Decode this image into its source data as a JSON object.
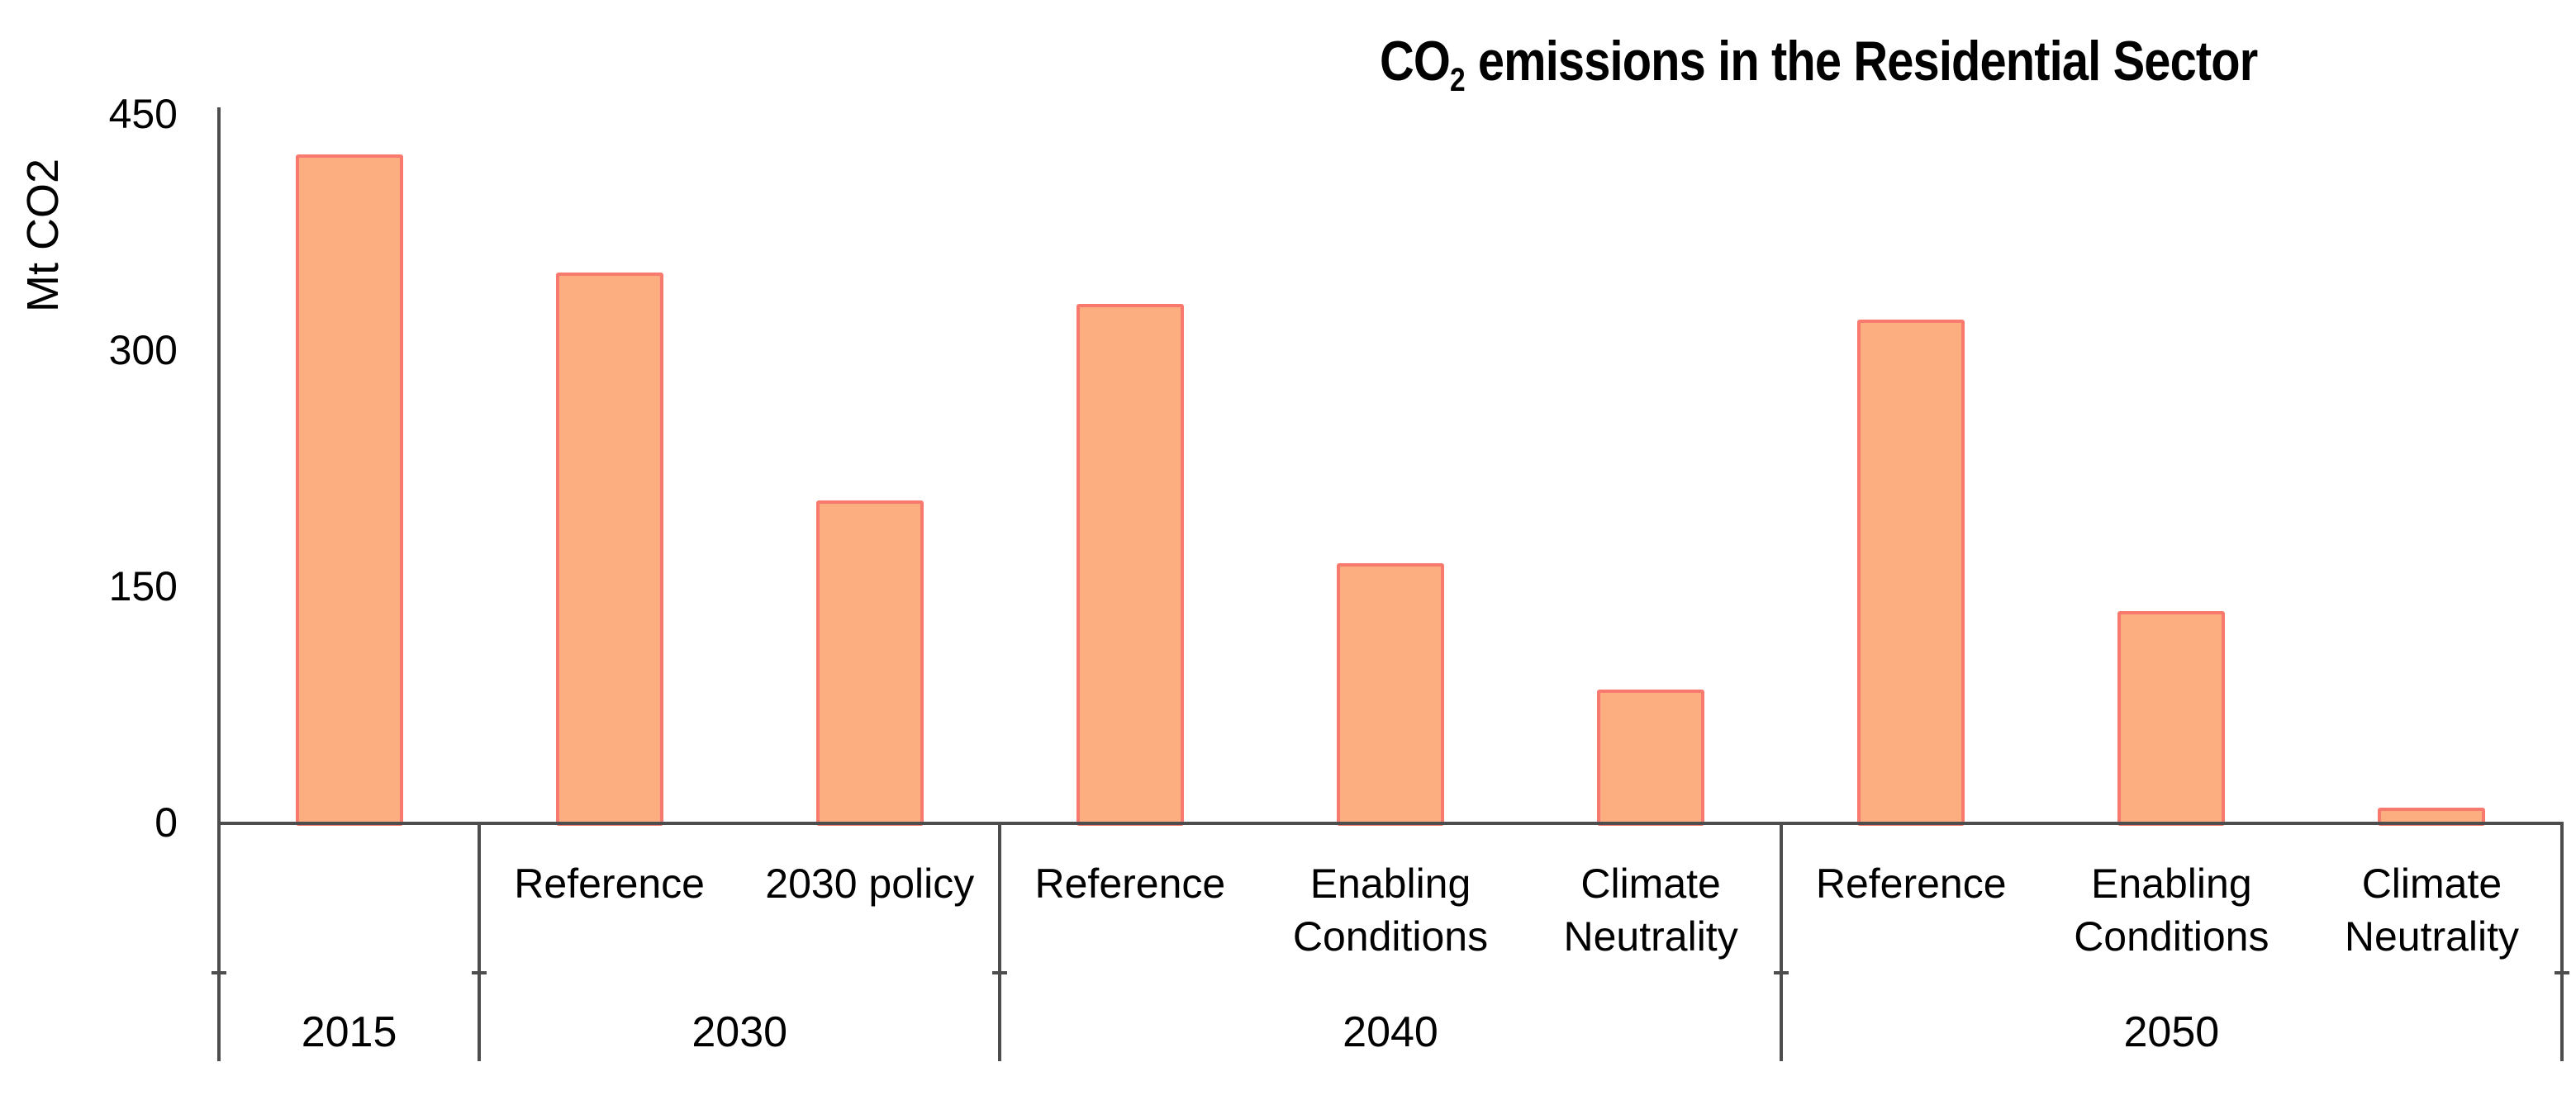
{
  "title": {
    "prefix": "CO",
    "subscript": "2",
    "rest": " emissions in the Residential Sector"
  },
  "colors": {
    "bar_fill": "#FCAE80",
    "bar_border": "#F8796E",
    "axis": "#4D4D4D",
    "text": "#000000",
    "background": "#FFFFFF"
  },
  "chart_data": {
    "type": "bar",
    "title": "CO2 emissions in the Residential Sector",
    "xlabel": "",
    "ylabel": "Mt CO2",
    "ylim": [
      0,
      450
    ],
    "yticks": [
      450,
      300,
      150,
      0
    ],
    "grid": false,
    "legend": false,
    "unit": "Mt CO2",
    "groups": [
      {
        "year": "2015",
        "bars": [
          {
            "label": "",
            "value": 425
          }
        ]
      },
      {
        "year": "2030",
        "bars": [
          {
            "label": "Reference",
            "value": 350
          },
          {
            "label": "2030 policy",
            "value": 205
          }
        ]
      },
      {
        "year": "2040",
        "bars": [
          {
            "label": "Reference",
            "value": 330
          },
          {
            "label": "Enabling Conditions",
            "value": 165
          },
          {
            "label": "Climate Neutrality",
            "value": 85
          }
        ]
      },
      {
        "year": "2050",
        "bars": [
          {
            "label": "Reference",
            "value": 320
          },
          {
            "label": "Enabling Conditions",
            "value": 135
          },
          {
            "label": "Climate Neutrality",
            "value": 10
          }
        ]
      }
    ]
  }
}
